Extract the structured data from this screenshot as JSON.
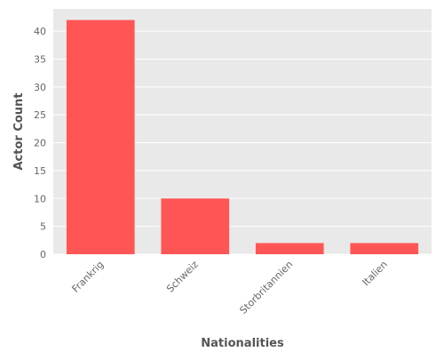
{
  "chart_data": {
    "type": "bar",
    "categories": [
      "Frankrig",
      "Schweiz",
      "Storbritannien",
      "Italien"
    ],
    "values": [
      42,
      10,
      2,
      2
    ],
    "title": "",
    "xlabel": "Nationalities",
    "ylabel": "Actor Count",
    "ylim": [
      0,
      44
    ],
    "yticks": [
      0,
      5,
      10,
      15,
      20,
      25,
      30,
      35,
      40
    ],
    "grid": true,
    "colors": {
      "bar": "#ff5555",
      "plot_background": "#e9e9e9",
      "grid": "#ffffff",
      "tick_text": "#666666",
      "axis_title": "#555555"
    }
  }
}
